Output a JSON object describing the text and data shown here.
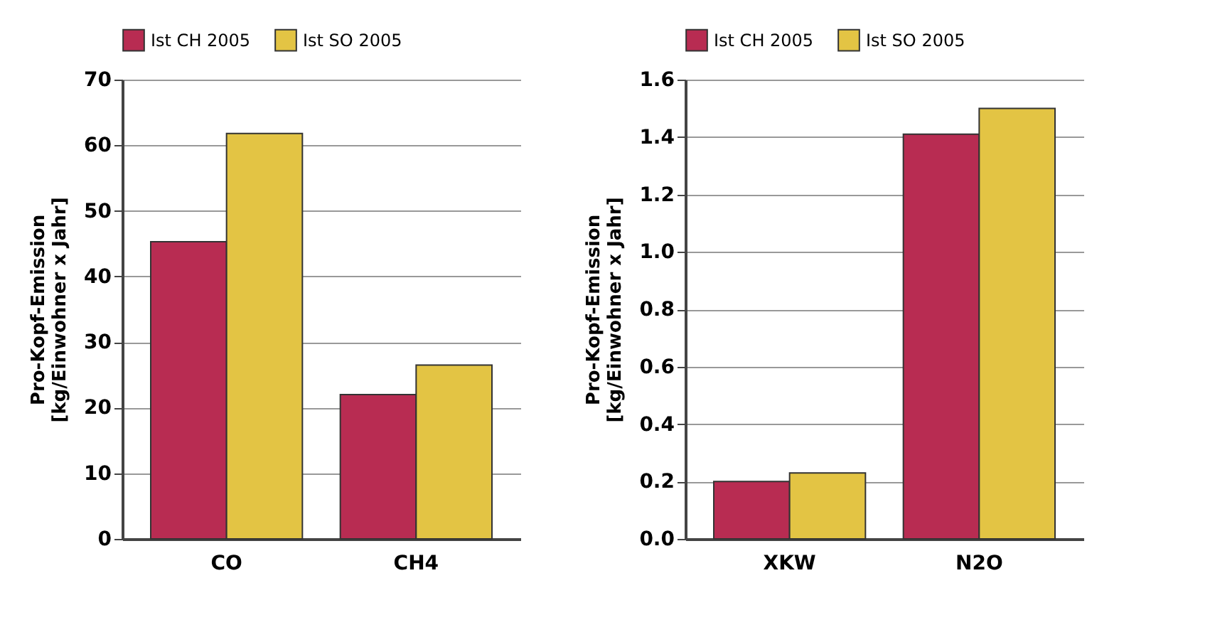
{
  "chart_data": [
    {
      "type": "bar",
      "categories": [
        "CO",
        "CH4"
      ],
      "ylabel": "Pro-Kopf-Emission\n[kg/Einwohner x Jahr]",
      "ylim": [
        0,
        70
      ],
      "yticks": [
        0,
        10,
        20,
        30,
        40,
        50,
        60,
        70
      ],
      "grid": "y",
      "legend": "top",
      "series": [
        {
          "name": "Ist CH 2005",
          "color": "#b82c52",
          "values": [
            45.3,
            22
          ]
        },
        {
          "name": "Ist SO 2005",
          "color": "#e3c444",
          "values": [
            61.8,
            26.5
          ]
        }
      ]
    },
    {
      "type": "bar",
      "categories": [
        "XKW",
        "N2O"
      ],
      "ylabel": "Pro-Kopf-Emission\n[kg/Einwohner x Jahr]",
      "ylim": [
        0,
        1.6
      ],
      "yticks": [
        {
          "value": 0,
          "label": "0.0"
        },
        0.2,
        0.4,
        0.6,
        0.8,
        {
          "value": 1,
          "label": "1.0"
        },
        1.2,
        1.4,
        1.6
      ],
      "grid": "y",
      "legend": "top",
      "series": [
        {
          "name": "Ist CH 2005",
          "color": "#b82c52",
          "values": [
            0.2,
            1.41
          ]
        },
        {
          "name": "Ist SO 2005",
          "color": "#e3c444",
          "values": [
            0.23,
            1.5
          ]
        }
      ]
    }
  ]
}
